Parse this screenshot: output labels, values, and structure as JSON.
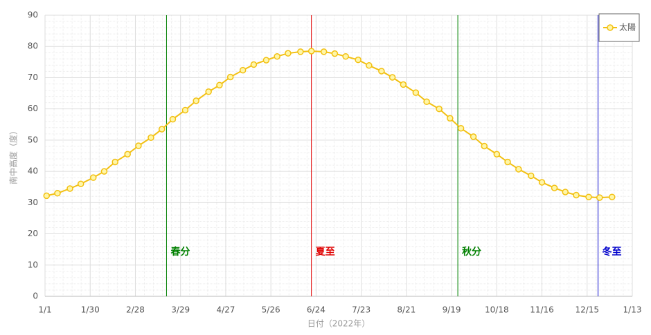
{
  "chart_data": {
    "type": "line",
    "xlabel": "日付（2022年）",
    "ylabel": "南中高度（度）",
    "x": [
      1,
      8,
      16,
      23,
      31,
      38,
      45,
      53,
      60,
      68,
      75,
      82,
      90,
      97,
      105,
      112,
      119,
      127,
      134,
      142,
      149,
      156,
      164,
      171,
      179,
      186,
      193,
      201,
      208,
      216,
      223,
      230,
      238,
      245,
      253,
      260,
      267,
      275,
      282,
      290,
      297,
      304,
      312,
      319,
      327,
      334,
      341,
      349,
      356,
      364
    ],
    "series": [
      {
        "name": "太陽",
        "color": "#f2c012",
        "values": [
          32.2,
          33.0,
          34.5,
          36.0,
          38.0,
          40.0,
          43.0,
          45.5,
          48.2,
          50.8,
          53.5,
          56.7,
          59.6,
          62.6,
          65.5,
          67.6,
          70.2,
          72.4,
          74.2,
          75.6,
          76.8,
          77.8,
          78.3,
          78.5,
          78.3,
          77.7,
          76.8,
          75.7,
          73.9,
          72.1,
          70.1,
          67.8,
          65.2,
          62.3,
          60.0,
          57.0,
          53.8,
          51.1,
          48.1,
          45.5,
          43.0,
          40.7,
          38.6,
          36.5,
          34.7,
          33.4,
          32.4,
          31.8,
          31.6,
          31.8
        ]
      }
    ],
    "xlim": [
      0,
      377
    ],
    "xticks": [
      {
        "value": 0,
        "label": "1/1"
      },
      {
        "value": 29,
        "label": "1/30"
      },
      {
        "value": 58,
        "label": "2/28"
      },
      {
        "value": 87,
        "label": "3/29"
      },
      {
        "value": 116,
        "label": "4/27"
      },
      {
        "value": 145,
        "label": "5/26"
      },
      {
        "value": 174,
        "label": "6/24"
      },
      {
        "value": 203,
        "label": "7/23"
      },
      {
        "value": 232,
        "label": "8/21"
      },
      {
        "value": 261,
        "label": "9/19"
      },
      {
        "value": 290,
        "label": "10/18"
      },
      {
        "value": 319,
        "label": "11/16"
      },
      {
        "value": 348,
        "label": "12/15"
      },
      {
        "value": 377,
        "label": "1/13"
      }
    ],
    "ylim": [
      0,
      90
    ],
    "yticks": [
      0,
      10,
      20,
      30,
      40,
      50,
      60,
      70,
      80,
      90
    ],
    "grid": true,
    "legend": "top-right",
    "annotations": [
      {
        "label": "春分",
        "x": 78,
        "color": "#008000"
      },
      {
        "label": "夏至",
        "x": 171,
        "color": "#e00000"
      },
      {
        "label": "秋分",
        "x": 265,
        "color": "#008000"
      },
      {
        "label": "冬至",
        "x": 355,
        "color": "#0000cc"
      }
    ]
  }
}
